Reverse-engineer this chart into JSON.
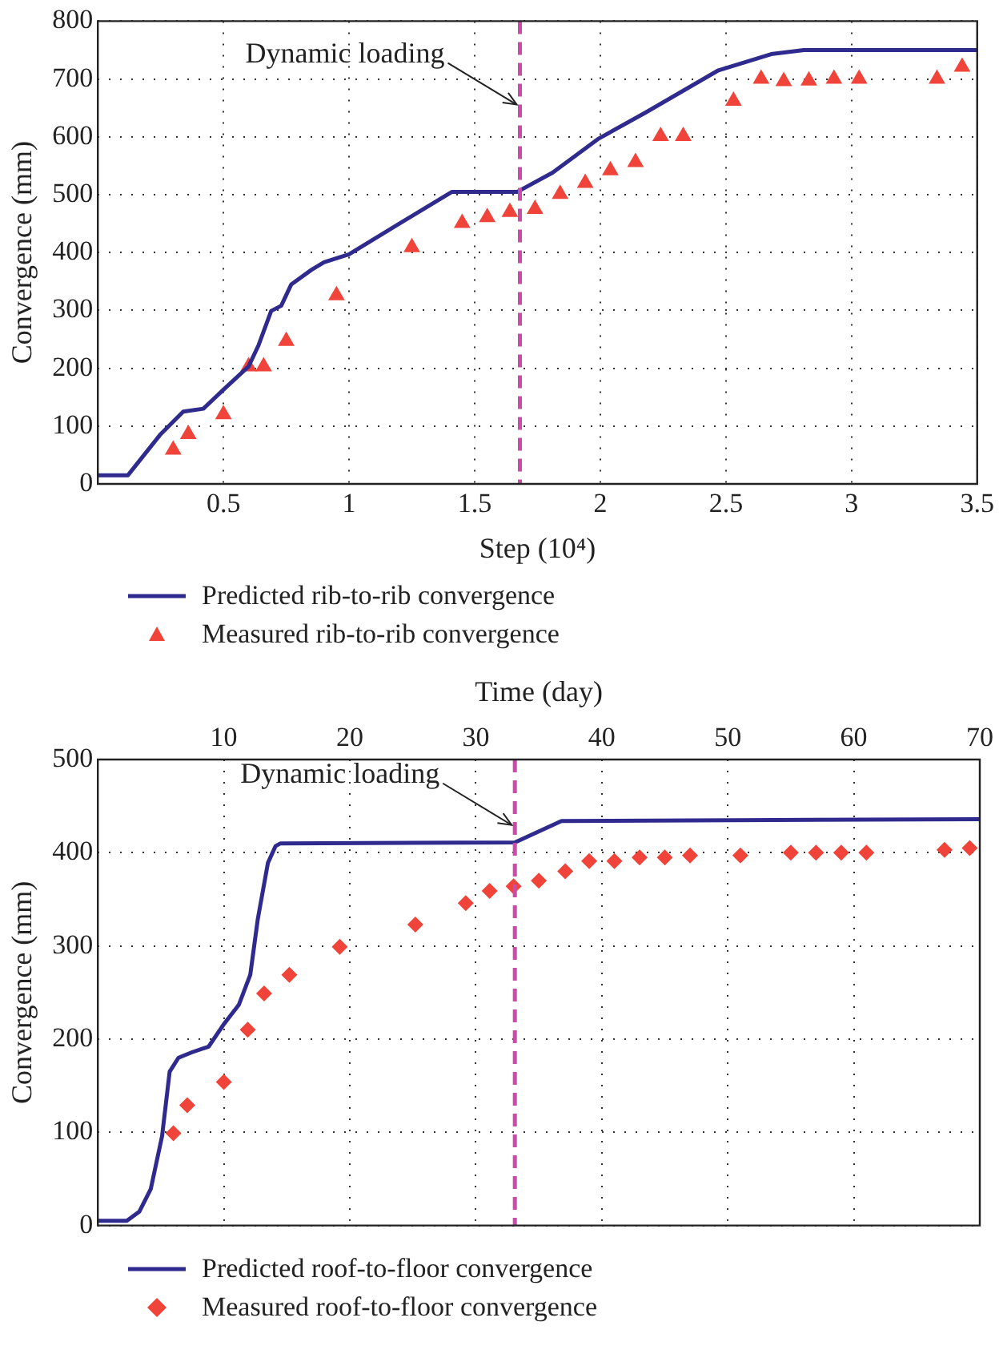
{
  "chart_data": [
    {
      "type": "line",
      "xlabel": "Step (10⁴)",
      "ylabel": "Convergence (mm)",
      "xlim": [
        0,
        3.5
      ],
      "xticks": [
        0.5,
        1.0,
        1.5,
        2.0,
        2.5,
        3.0,
        3.5
      ],
      "ylim": [
        0,
        800
      ],
      "yticks": [
        0,
        100,
        200,
        300,
        400,
        500,
        600,
        700,
        800
      ],
      "grid": true,
      "legend": "bottom",
      "series": [
        {
          "name": "Predicted rib-to-rib convergence",
          "type": "line",
          "color": "#2f2a8e",
          "marker": "none",
          "x": [
            0,
            0.12,
            0.25,
            0.34,
            0.42,
            0.5,
            0.6,
            0.64,
            0.69,
            0.73,
            0.77,
            0.85,
            0.9,
            1.0,
            1.2,
            1.41,
            1.67,
            1.81,
            1.99,
            2.18,
            2.47,
            2.68,
            2.81,
            3.5
          ],
          "values": [
            15,
            15,
            86,
            125,
            130,
            163,
            203,
            240,
            299,
            308,
            345,
            370,
            383,
            397,
            450,
            505,
            505,
            538,
            596,
            642,
            715,
            743,
            750,
            750
          ]
        },
        {
          "name": "Measured rib-to-rib convergence",
          "type": "scatter",
          "color": "#f0443a",
          "marker": "triangle",
          "x": [
            0.3,
            0.36,
            0.5,
            0.6,
            0.66,
            0.75,
            0.95,
            1.25,
            1.45,
            1.55,
            1.64,
            1.74,
            1.84,
            1.94,
            2.04,
            2.14,
            2.24,
            2.33,
            2.53,
            2.64,
            2.73,
            2.83,
            2.93,
            3.03,
            3.34,
            3.44
          ],
          "values": [
            59,
            86,
            120,
            203,
            203,
            247,
            326,
            409,
            451,
            461,
            470,
            475,
            501,
            520,
            542,
            556,
            601,
            601,
            662,
            700,
            696,
            697,
            700,
            700,
            700,
            721
          ]
        }
      ],
      "ref_lines": [
        {
          "axis": "x",
          "value": 1.68,
          "color": "#cc4aa8",
          "line_style": "dashed"
        }
      ],
      "annotations": [
        {
          "text": "Dynamic loading",
          "x": 1.68,
          "y": 653
        }
      ]
    },
    {
      "type": "line",
      "xlabel": "Time (day)",
      "ylabel": "Convergence (mm)",
      "xlim": [
        0,
        70
      ],
      "xticks": [
        10,
        20,
        30,
        40,
        50,
        60,
        70
      ],
      "ylim": [
        0,
        500
      ],
      "yticks": [
        0,
        100,
        200,
        300,
        400,
        500
      ],
      "grid": true,
      "legend": "bottom",
      "series": [
        {
          "name": "Predicted roof-to-floor convergence",
          "type": "line",
          "color": "#2f2a8e",
          "marker": "none",
          "x": [
            0,
            2.3,
            3.3,
            4.2,
            5.1,
            5.7,
            6.4,
            7.5,
            8.8,
            10,
            11.2,
            12.1,
            12.7,
            13.5,
            14.1,
            14.5,
            33.1,
            36.8,
            70
          ],
          "values": [
            5,
            5,
            15,
            39,
            96,
            165,
            180,
            186,
            192,
            216,
            237,
            269,
            329,
            389,
            407,
            410,
            411,
            434,
            436
          ]
        },
        {
          "name": "Measured roof-to-floor convergence",
          "type": "scatter",
          "color": "#f0443a",
          "marker": "diamond",
          "x": [
            6,
            7.1,
            10,
            11.9,
            13.2,
            15.2,
            19.2,
            25.2,
            29.2,
            31.1,
            33,
            35,
            37.1,
            39,
            41,
            43,
            45,
            47,
            51,
            55,
            57,
            59,
            61,
            67.2,
            69.2
          ],
          "values": [
            99,
            129,
            154,
            210,
            249,
            269,
            299,
            323,
            346,
            359,
            364,
            370,
            380,
            391,
            391,
            395,
            395,
            397,
            397,
            400,
            400,
            400,
            400,
            403,
            405
          ]
        }
      ],
      "ref_lines": [
        {
          "axis": "x",
          "value": 33.1,
          "color": "#cc4aa8",
          "line_style": "dashed"
        }
      ],
      "annotations": [
        {
          "text": "Dynamic loading",
          "x": 33.1,
          "y": 428
        }
      ]
    }
  ]
}
